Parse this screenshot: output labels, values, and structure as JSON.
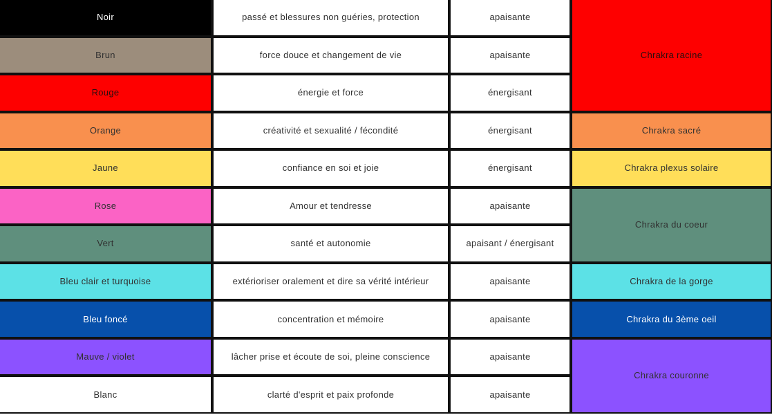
{
  "chart_data": {
    "type": "table",
    "rows": [
      {
        "name": "Noir",
        "color": "#000000",
        "text_color": "#ffffff",
        "meaning": "passé et blessures non guéries, protection",
        "effect": "apaisante"
      },
      {
        "name": "Brun",
        "color": "#9c8d7c",
        "text_color": "#313131",
        "meaning": "force douce et changement de vie",
        "effect": "apaisante"
      },
      {
        "name": "Rouge",
        "color": "#fe0000",
        "text_color": "#2a0e0e",
        "meaning": "énergie et force",
        "effect": "énergisant"
      },
      {
        "name": "Orange",
        "color": "#f9904e",
        "text_color": "#313131",
        "meaning": "créativité et sexualité / fécondité",
        "effect": "énergisant"
      },
      {
        "name": "Jaune",
        "color": "#ffde59",
        "text_color": "#313131",
        "meaning": "confiance en soi et joie",
        "effect": "énergisant"
      },
      {
        "name": "Rose",
        "color": "#fb63c5",
        "text_color": "#313131",
        "meaning": "Amour et tendresse",
        "effect": "apaisante"
      },
      {
        "name": "Vert",
        "color": "#5f8f7d",
        "text_color": "#313131",
        "meaning": "santé et autonomie",
        "effect": "apaisant / énergisant"
      },
      {
        "name": "Bleu clair et turquoise",
        "color": "#5ce1e6",
        "text_color": "#313131",
        "meaning": "extérioriser oralement et dire sa vérité intérieur",
        "effect": "apaisante"
      },
      {
        "name": "Bleu foncé",
        "color": "#0750ab",
        "text_color": "#ffffff",
        "meaning": "concentration et mémoire",
        "effect": "apaisante"
      },
      {
        "name": "Mauve / violet",
        "color": "#8c52ff",
        "text_color": "#313131",
        "meaning": "lâcher prise et écoute de soi, pleine conscience",
        "effect": "apaisante"
      },
      {
        "name": "Blanc",
        "color": "#ffffff",
        "text_color": "#313131",
        "meaning": "clarté d'esprit et paix profonde",
        "effect": "apaisante"
      }
    ],
    "chakra_cells": [
      {
        "label": "Chrakra racine",
        "color": "#fe0000",
        "text_color": "#2a0e0e",
        "row_start": 1,
        "row_span": 3
      },
      {
        "label": "Chrakra sacré",
        "color": "#f9904e",
        "text_color": "#313131",
        "row_start": 4,
        "row_span": 1
      },
      {
        "label": "Chrakra plexus solaire",
        "color": "#ffde59",
        "text_color": "#313131",
        "row_start": 5,
        "row_span": 1
      },
      {
        "label": "Chrakra du coeur",
        "color": "#5f8f7d",
        "text_color": "#313131",
        "row_start": 6,
        "row_span": 2
      },
      {
        "label": "Chrakra de la gorge",
        "color": "#5ce1e6",
        "text_color": "#313131",
        "row_start": 8,
        "row_span": 1
      },
      {
        "label": "Chrakra du 3ème oeil",
        "color": "#0750ab",
        "text_color": "#ffffff",
        "row_start": 9,
        "row_span": 1
      },
      {
        "label": "Chrakra couronne",
        "color": "#8c52ff",
        "text_color": "#313131",
        "row_start": 10,
        "row_span": 2
      }
    ],
    "style": {
      "border_color": "#101010",
      "background": "#ffffff"
    }
  }
}
